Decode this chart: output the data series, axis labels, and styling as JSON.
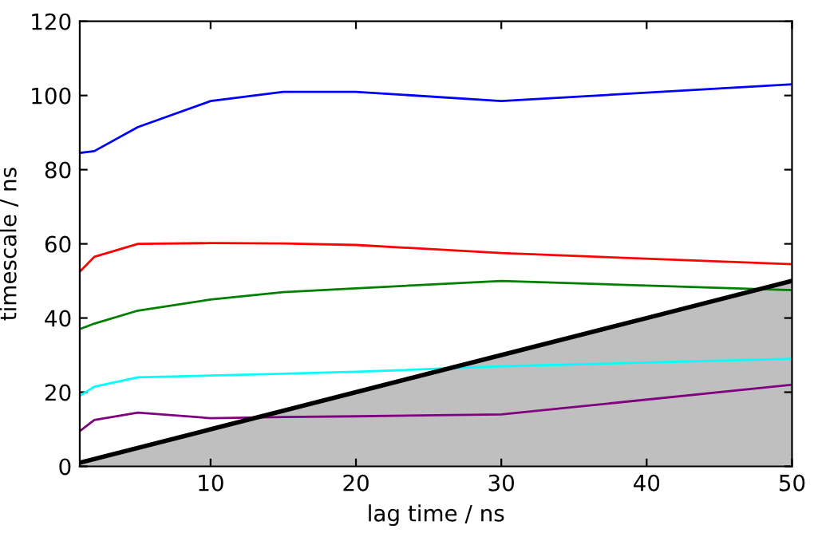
{
  "chart_data": {
    "type": "line",
    "xlabel": "lag time / ns",
    "ylabel": "timescale / ns",
    "x": [
      1,
      2,
      5,
      10,
      15,
      20,
      30,
      50
    ],
    "series": [
      {
        "color": "#0000ff",
        "values": [
          84.5,
          85,
          91.5,
          98.5,
          101,
          101,
          98.5,
          103
        ]
      },
      {
        "color": "#ff0000",
        "values": [
          52.5,
          56.5,
          60,
          60.2,
          60.1,
          59.7,
          57.5,
          54.5
        ]
      },
      {
        "color": "#008000",
        "values": [
          37,
          38.5,
          42,
          45,
          47,
          48,
          50,
          47.5
        ]
      },
      {
        "color": "#00ffff",
        "values": [
          19,
          21.5,
          24,
          24.5,
          25,
          25.5,
          27,
          29
        ]
      },
      {
        "color": "#800080",
        "values": [
          9.5,
          12.5,
          14.5,
          13,
          13.3,
          13.5,
          14,
          22
        ]
      },
      {
        "type": "area",
        "color": "#bfbfbf",
        "x": [
          1,
          10,
          20,
          30,
          40,
          50
        ],
        "values": [
          1,
          10,
          20,
          30,
          40,
          50
        ]
      }
    ],
    "xlim": [
      1,
      50
    ],
    "ylim": [
      0,
      120
    ],
    "xticks": [
      10,
      20,
      30,
      40,
      50
    ],
    "yticks": [
      0,
      20,
      40,
      60,
      80,
      100,
      120
    ]
  }
}
